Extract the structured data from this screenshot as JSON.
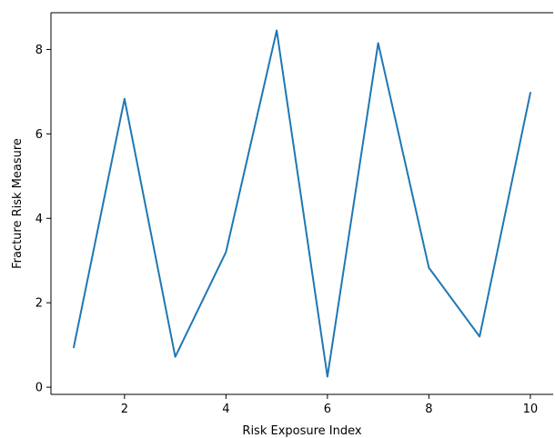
{
  "chart_data": {
    "type": "line",
    "title": "",
    "xlabel": "Risk Exposure Index",
    "ylabel": "Fracture Risk Measure",
    "x": [
      1,
      2,
      3,
      4,
      5,
      6,
      7,
      8,
      9,
      10
    ],
    "series": [
      {
        "values": [
          0.95,
          6.83,
          0.72,
          3.2,
          8.45,
          0.25,
          8.15,
          2.83,
          1.2,
          6.97
        ]
      }
    ],
    "xlim": [
      0.55,
      10.45
    ],
    "ylim": [
      -0.17,
      8.87
    ],
    "xticks": [
      2,
      4,
      6,
      8,
      10
    ],
    "yticks": [
      0,
      2,
      4,
      6,
      8
    ],
    "grid": false,
    "line_color": "#1f77b4",
    "spines": [
      "left",
      "bottom",
      "top"
    ]
  }
}
